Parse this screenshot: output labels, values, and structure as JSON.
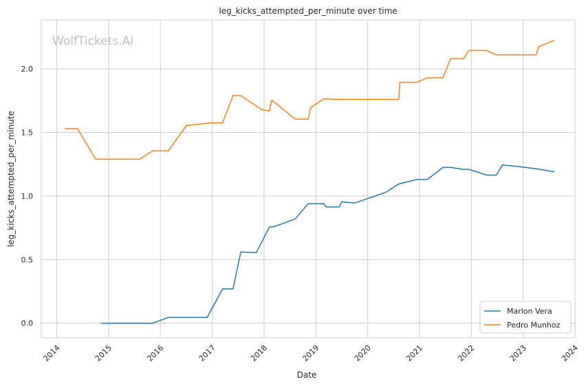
{
  "chart_data": {
    "type": "line",
    "title": "leg_kicks_attempted_per_minute over time",
    "xlabel": "Date",
    "ylabel": "leg_kicks_attempted_per_minute",
    "watermark": "WolfTickets.AI",
    "xlim": [
      2013.7,
      2024.0
    ],
    "ylim": [
      -0.115,
      2.385
    ],
    "x_ticks": [
      2014,
      2015,
      2016,
      2017,
      2018,
      2019,
      2020,
      2021,
      2022,
      2023,
      2024
    ],
    "x_tick_labels": [
      "2014",
      "2015",
      "2016",
      "2017",
      "2018",
      "2019",
      "2020",
      "2021",
      "2022",
      "2023",
      "2024"
    ],
    "y_ticks": [
      0.0,
      0.5,
      1.0,
      1.5,
      2.0
    ],
    "y_tick_labels": [
      "0.0",
      "0.5",
      "1.0",
      "1.5",
      "2.0"
    ],
    "grid": true,
    "legend_position": "bottom-right",
    "series": [
      {
        "name": "Marlon Vera",
        "color": "#1f77b4",
        "x": [
          2014.85,
          2015.85,
          2016.15,
          2016.9,
          2017.2,
          2017.4,
          2017.55,
          2017.85,
          2018.1,
          2018.2,
          2018.6,
          2018.85,
          2019.15,
          2019.2,
          2019.45,
          2019.5,
          2019.75,
          2020.35,
          2020.6,
          2020.95,
          2021.15,
          2021.45,
          2021.6,
          2021.85,
          2021.95,
          2022.3,
          2022.48,
          2022.6,
          2022.95,
          2023.25,
          2023.6
        ],
        "y": [
          0.0,
          0.0,
          0.045,
          0.045,
          0.27,
          0.27,
          0.56,
          0.555,
          0.755,
          0.76,
          0.82,
          0.94,
          0.94,
          0.915,
          0.915,
          0.955,
          0.945,
          1.03,
          1.095,
          1.13,
          1.13,
          1.225,
          1.225,
          1.21,
          1.21,
          1.165,
          1.165,
          1.245,
          1.23,
          1.215,
          1.19
        ]
      },
      {
        "name": "Pedro Munhoz",
        "color": "#ff7f0e",
        "x": [
          2014.15,
          2014.4,
          2014.75,
          2015.6,
          2015.85,
          2016.15,
          2016.5,
          2016.95,
          2017.2,
          2017.4,
          2017.55,
          2017.95,
          2018.1,
          2018.15,
          2018.6,
          2018.85,
          2018.9,
          2019.15,
          2019.4,
          2020.6,
          2020.62,
          2020.95,
          2021.15,
          2021.45,
          2021.6,
          2021.85,
          2021.95,
          2022.3,
          2022.48,
          2023.25,
          2023.3,
          2023.6
        ],
        "y": [
          1.53,
          1.53,
          1.29,
          1.29,
          1.355,
          1.355,
          1.555,
          1.575,
          1.575,
          1.79,
          1.79,
          1.68,
          1.67,
          1.755,
          1.605,
          1.605,
          1.695,
          1.765,
          1.76,
          1.76,
          1.895,
          1.895,
          1.93,
          1.93,
          2.08,
          2.08,
          2.145,
          2.145,
          2.11,
          2.11,
          2.175,
          2.225
        ]
      }
    ]
  }
}
